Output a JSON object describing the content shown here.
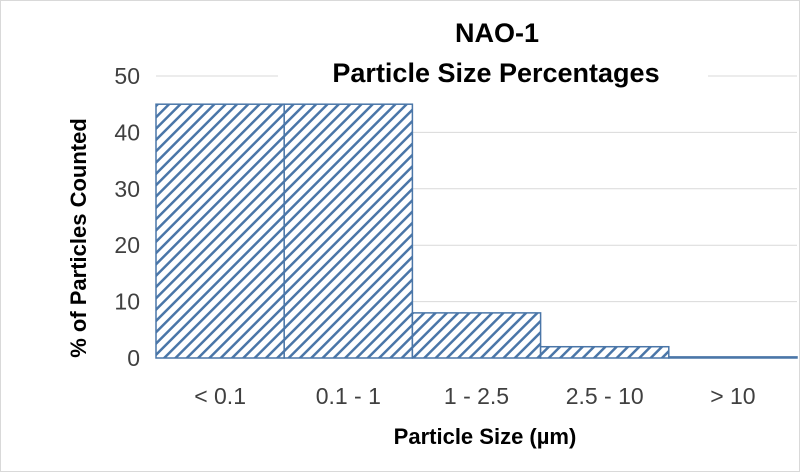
{
  "chart_data": {
    "type": "bar",
    "title": "NAO-1",
    "subtitle": "Particle Size Percentages",
    "xlabel": "Particle Size (µm)",
    "ylabel": "% of Particles Counted",
    "categories": [
      "< 0.1",
      "0.1 - 1",
      "1 - 2.5",
      "2.5 - 10",
      "> 10"
    ],
    "values": [
      45,
      45,
      8,
      2,
      0.2
    ],
    "ylim": [
      0,
      50
    ],
    "yticks": [
      "0",
      "10",
      "20",
      "30",
      "40",
      "50"
    ],
    "grid": true,
    "legend": "none",
    "colors": {
      "bar_stroke": "#4a76a8",
      "hatch": "#4a76a8",
      "grid": "#d9d9d9"
    }
  }
}
